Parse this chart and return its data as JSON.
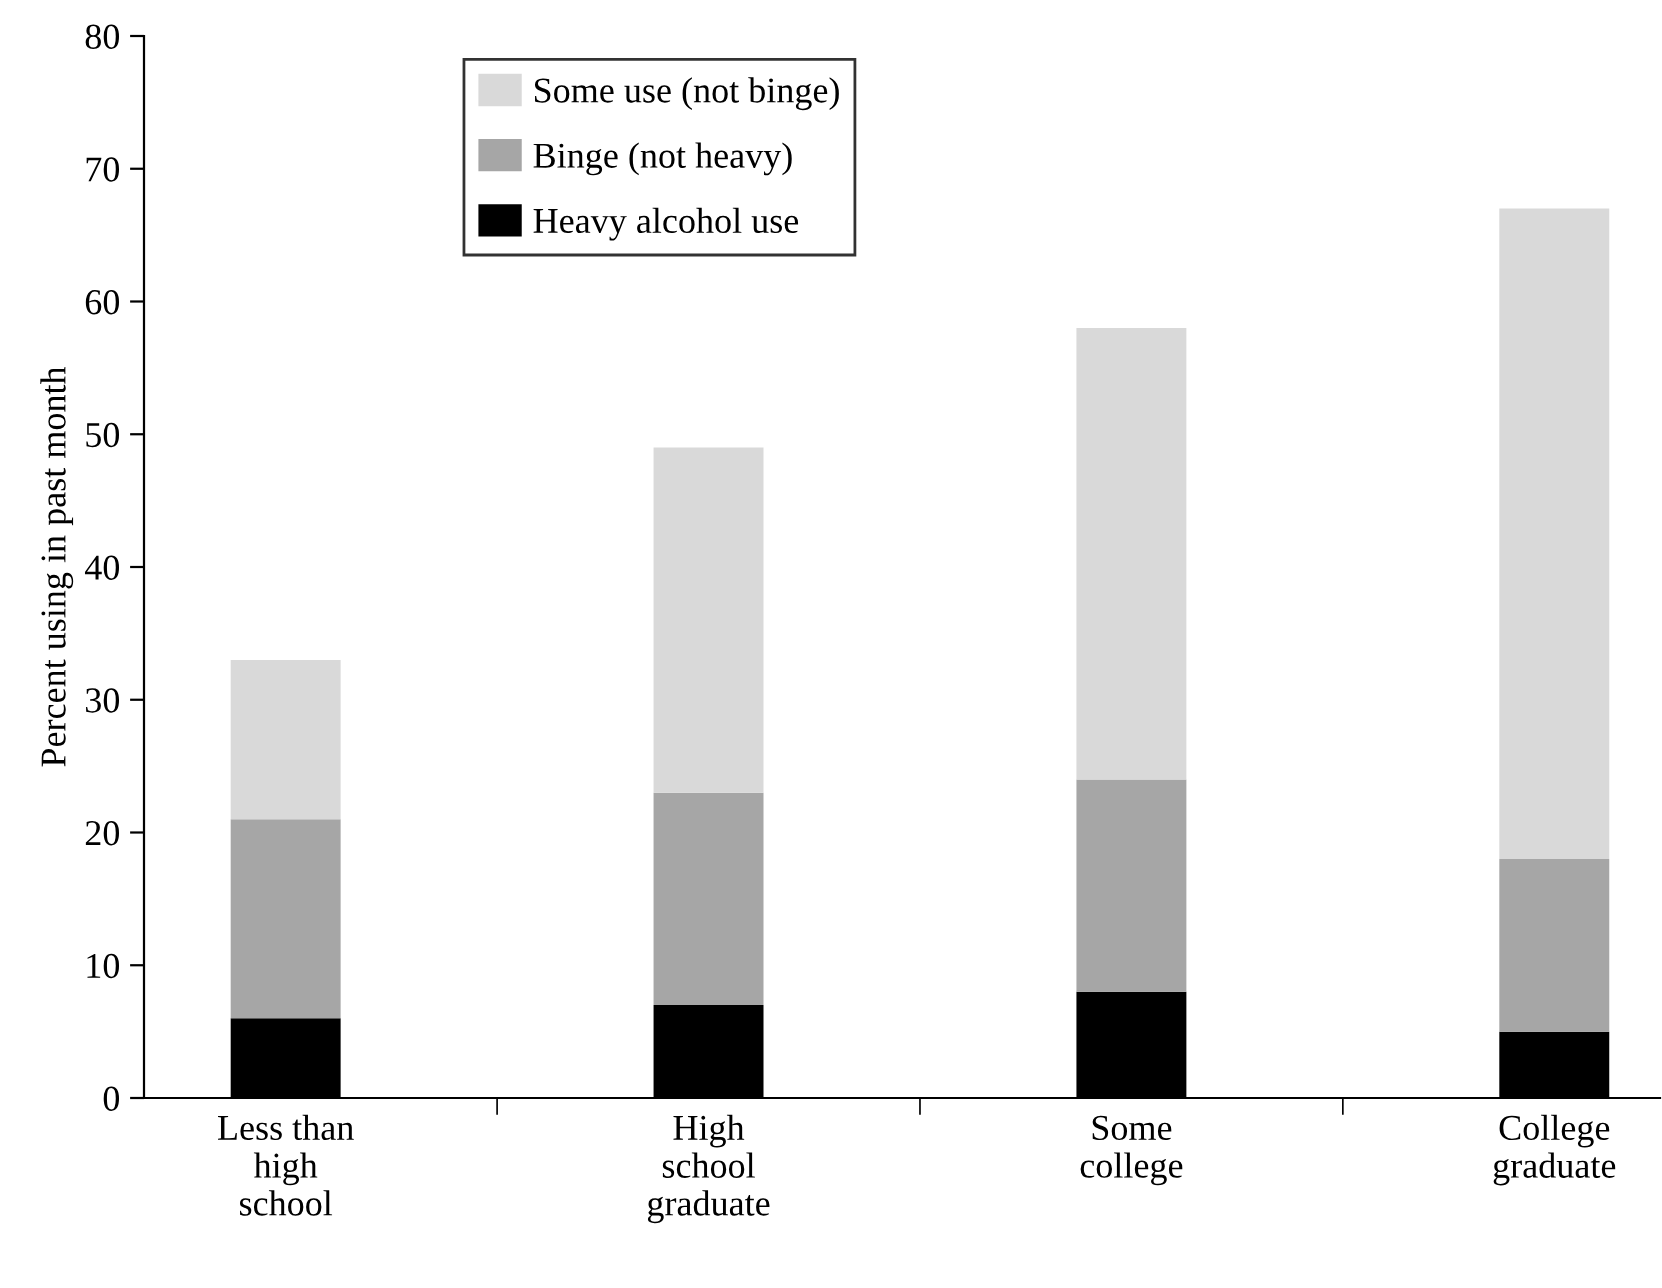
{
  "chart_data": {
    "type": "bar",
    "stacked": true,
    "categories": [
      "Less than\nhigh\nschool",
      "High\nschool\ngraduate",
      "Some\ncollege",
      "College\ngraduate"
    ],
    "series": [
      {
        "name": "Heavy alcohol use",
        "color": "#000000",
        "values": [
          6,
          7,
          8,
          5
        ]
      },
      {
        "name": "Binge (not heavy)",
        "color": "#a6a6a6",
        "values": [
          15,
          16,
          16,
          13
        ]
      },
      {
        "name": "Some use (not binge)",
        "color": "#d9d9d9",
        "values": [
          12,
          26,
          34,
          49
        ]
      }
    ],
    "ylabel": "Percent using in past month",
    "ylim": [
      0,
      80
    ],
    "yticks": [
      0,
      10,
      20,
      30,
      40,
      50,
      60,
      70,
      80
    ],
    "grid": false,
    "legend": "top"
  }
}
